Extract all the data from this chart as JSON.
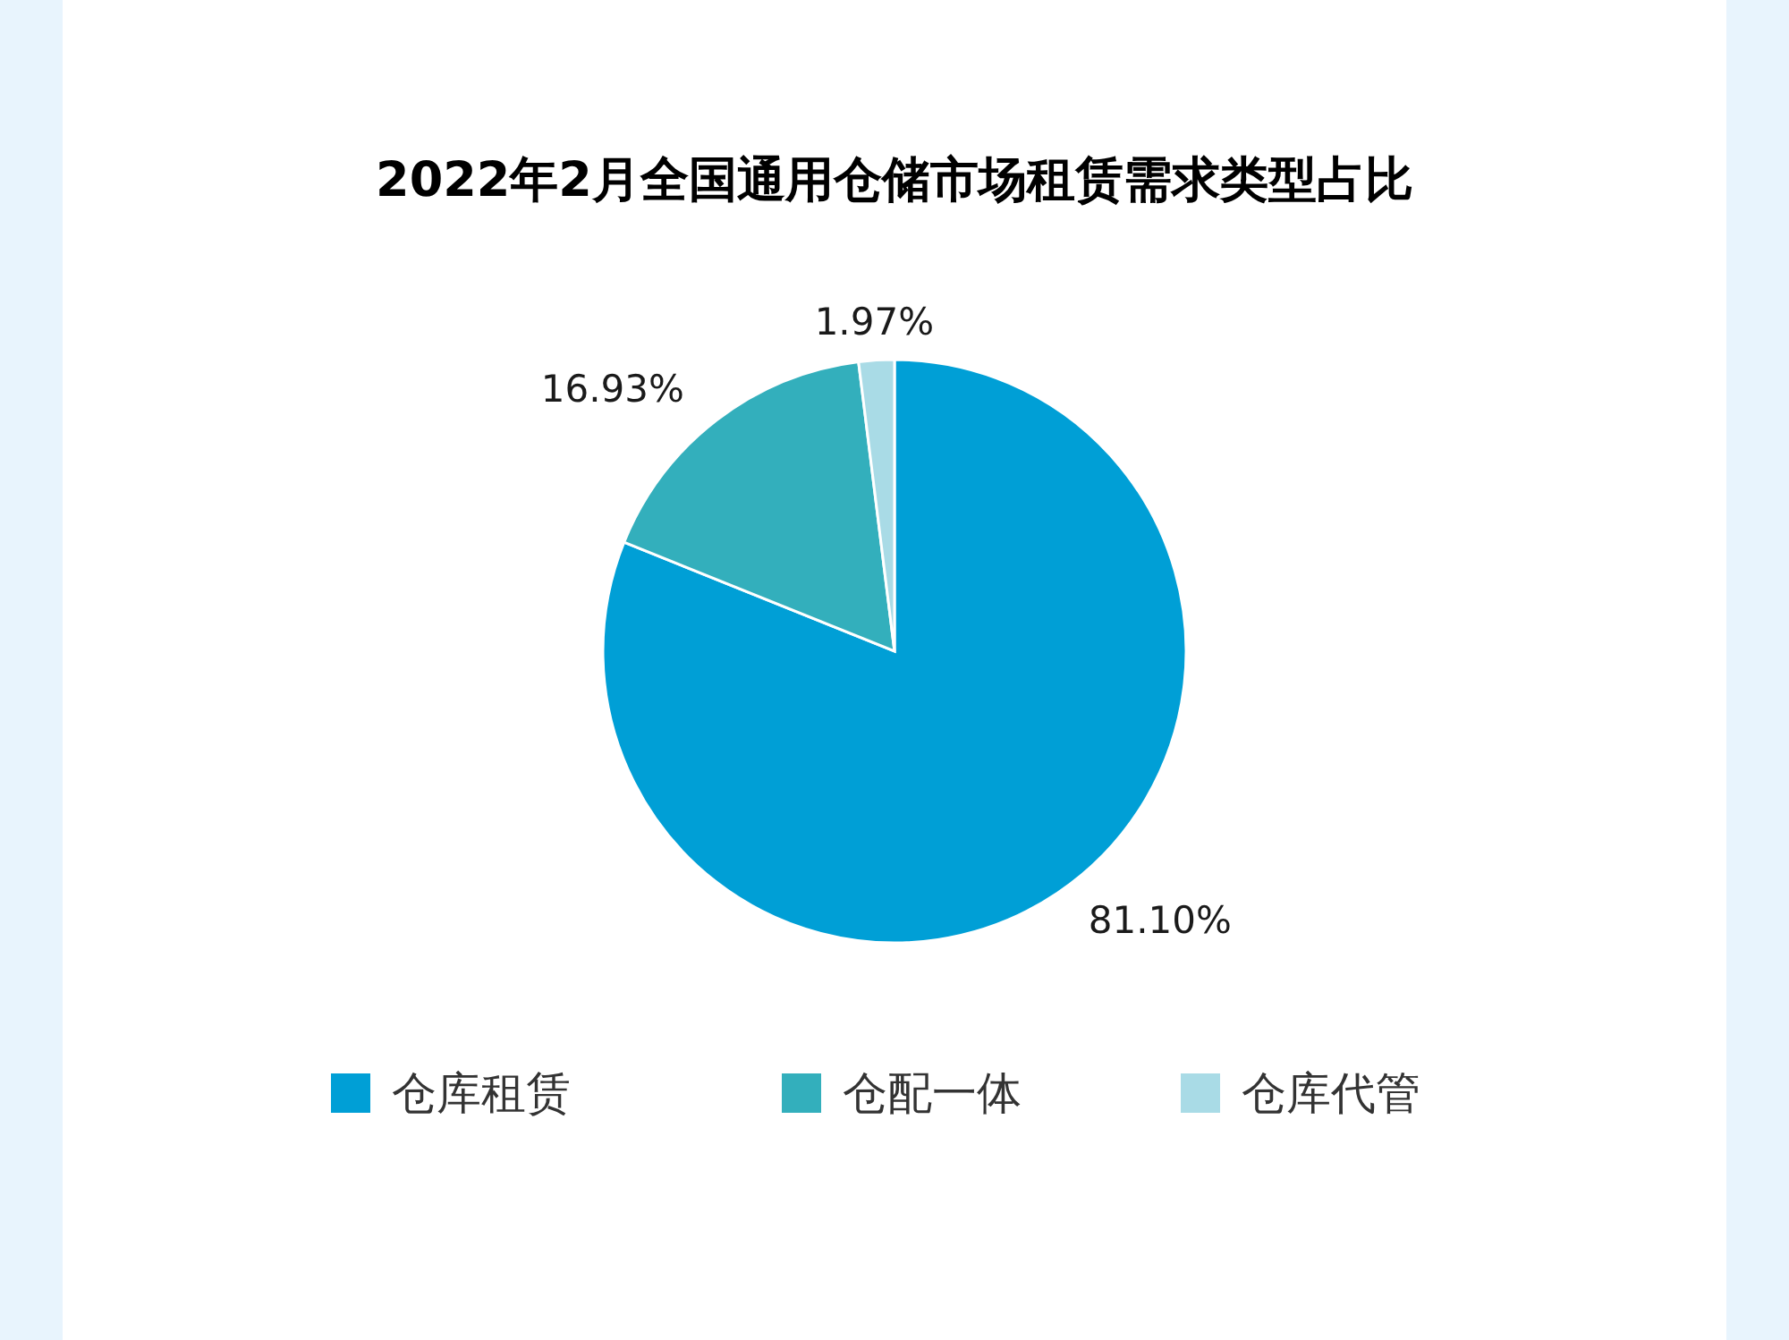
{
  "chart_data": {
    "type": "pie",
    "title": "2022年2月全国通用仓储市场租赁需求类型占比",
    "categories": [
      "仓库租赁",
      "仓配一体",
      "仓库代管"
    ],
    "values": [
      81.1,
      16.93,
      1.97
    ],
    "colors": [
      "#009fd6",
      "#33afbc",
      "#a9dbe6"
    ],
    "value_labels": [
      "81.10%",
      "16.93%",
      "1.97%"
    ],
    "legend": "bottom"
  }
}
